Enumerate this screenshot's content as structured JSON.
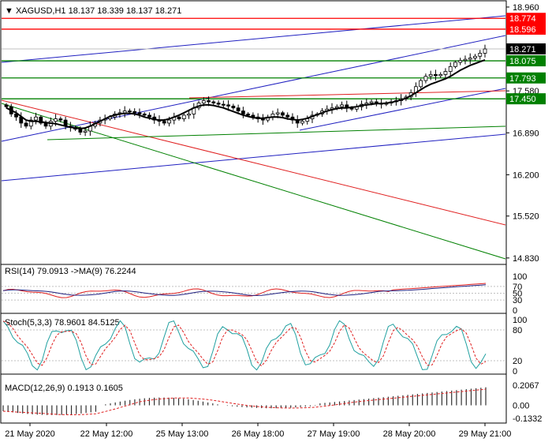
{
  "chart_data": {
    "type": "candlestick",
    "symbol": "XAGUSD",
    "timeframe": "H1",
    "ohlc_header": [
      "18.137",
      "18.339",
      "18.137",
      "18.271"
    ],
    "ylim": [
      14.75,
      19.05
    ],
    "y_ticks": [
      "18.960",
      "17.580",
      "16.890",
      "16.200",
      "15.520",
      "14.830"
    ],
    "x_ticks": [
      "21 May 2020",
      "22 May 12:00",
      "25 May 13:00",
      "26 May 18:00",
      "27 May 19:00",
      "28 May 20:00",
      "29 May 21:00"
    ],
    "levels": [
      {
        "value": "18.774",
        "color": "#ff0000"
      },
      {
        "value": "18.596",
        "color": "#ff0000"
      },
      {
        "value": "18.075",
        "color": "#008000"
      },
      {
        "value": "17.793",
        "color": "#008000"
      },
      {
        "value": "17.450",
        "color": "#008000"
      }
    ],
    "current_price": "18.271",
    "candles_close": [
      17.32,
      17.2,
      17.15,
      17.05,
      17.0,
      17.1,
      17.15,
      17.05,
      17.0,
      17.08,
      17.12,
      17.1,
      17.0,
      16.98,
      16.95,
      16.9,
      16.92,
      17.0,
      17.05,
      17.1,
      17.12,
      17.15,
      17.2,
      17.22,
      17.25,
      17.24,
      17.22,
      17.2,
      17.18,
      17.15,
      17.1,
      17.08,
      17.05,
      17.1,
      17.15,
      17.12,
      17.18,
      17.2,
      17.3,
      17.38,
      17.42,
      17.4,
      17.38,
      17.36,
      17.35,
      17.33,
      17.3,
      17.25,
      17.2,
      17.18,
      17.15,
      17.12,
      17.1,
      17.15,
      17.2,
      17.22,
      17.18,
      17.15,
      17.1,
      17.05,
      17.08,
      17.12,
      17.18,
      17.2,
      17.25,
      17.28,
      17.3,
      17.32,
      17.35,
      17.3,
      17.28,
      17.32,
      17.36,
      17.38,
      17.4,
      17.38,
      17.36,
      17.38,
      17.4,
      17.42,
      17.45,
      17.48,
      17.55,
      17.65,
      17.75,
      17.82,
      17.85,
      17.83,
      17.85,
      17.9,
      17.98,
      18.05,
      18.08,
      18.1,
      18.12,
      18.15,
      18.2,
      18.27
    ],
    "ma": [
      17.3,
      17.26,
      17.22,
      17.16,
      17.1,
      17.08,
      17.08,
      17.07,
      17.06,
      17.05,
      17.04,
      17.02,
      17.0,
      16.98,
      16.97,
      16.96,
      16.97,
      17.0,
      17.04,
      17.08,
      17.12,
      17.16,
      17.18,
      17.2,
      17.21,
      17.21,
      17.2,
      17.18,
      17.15,
      17.13,
      17.11,
      17.1,
      17.1,
      17.12,
      17.15,
      17.18,
      17.22,
      17.26,
      17.3,
      17.33,
      17.35,
      17.35,
      17.34,
      17.32,
      17.3,
      17.27,
      17.24,
      17.21,
      17.18,
      17.16,
      17.14,
      17.13,
      17.13,
      17.14,
      17.15,
      17.15,
      17.14,
      17.12,
      17.11,
      17.1,
      17.11,
      17.13,
      17.16,
      17.19,
      17.22,
      17.25,
      17.27,
      17.29,
      17.3,
      17.3,
      17.31,
      17.32,
      17.34,
      17.35,
      17.36,
      17.37,
      17.37,
      17.38,
      17.39,
      17.41,
      17.43,
      17.46,
      17.5,
      17.55,
      17.6,
      17.65,
      17.69,
      17.72,
      17.75,
      17.78,
      17.82,
      17.87,
      17.92,
      17.96,
      18.0,
      18.03,
      18.06,
      18.09
    ],
    "rsi": {
      "label": "RSI(14) 79.0913  ->MA(9) 76.2244",
      "ticks": [
        "100",
        "70",
        "50",
        "30",
        "0"
      ],
      "value": 79.0913,
      "ma": 76.2244
    },
    "stoch": {
      "label": "Stoch(5,3,3) 78.9601 84.5125",
      "ticks": [
        "100",
        "80",
        "20",
        "0"
      ],
      "k": 78.9601,
      "d": 84.5125
    },
    "macd": {
      "label": "MACD(12,26,9) 0.1913 0.1605",
      "ticks": [
        "0.2067",
        "0.00",
        "-0.1332"
      ],
      "main": 0.1913,
      "signal": 0.1605
    }
  }
}
